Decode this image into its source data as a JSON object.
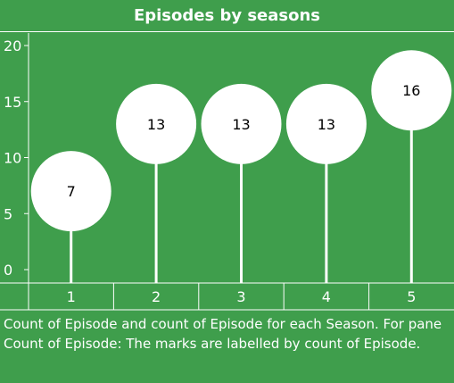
{
  "chart_data": {
    "type": "scatter",
    "title": "Episodes by seasons",
    "categories": [
      "1",
      "2",
      "3",
      "4",
      "5"
    ],
    "series": [
      {
        "values": [
          7,
          13,
          13,
          13,
          16
        ]
      }
    ],
    "y_ticks": [
      "0",
      "5",
      "10",
      "15",
      "20"
    ],
    "ylim": [
      0,
      20
    ],
    "xlabel": "",
    "ylabel": "",
    "mark_style": "lollipop-circles",
    "grid": false
  },
  "caption": "Count of Episode and count of Episode for each Season.  For pane Count of Episode:  The marks are labelled by count of Episode.",
  "colors": {
    "background": "#3f9e4c",
    "marks": "#ffffff",
    "text": "#ffffff",
    "label_text": "#000000"
  }
}
